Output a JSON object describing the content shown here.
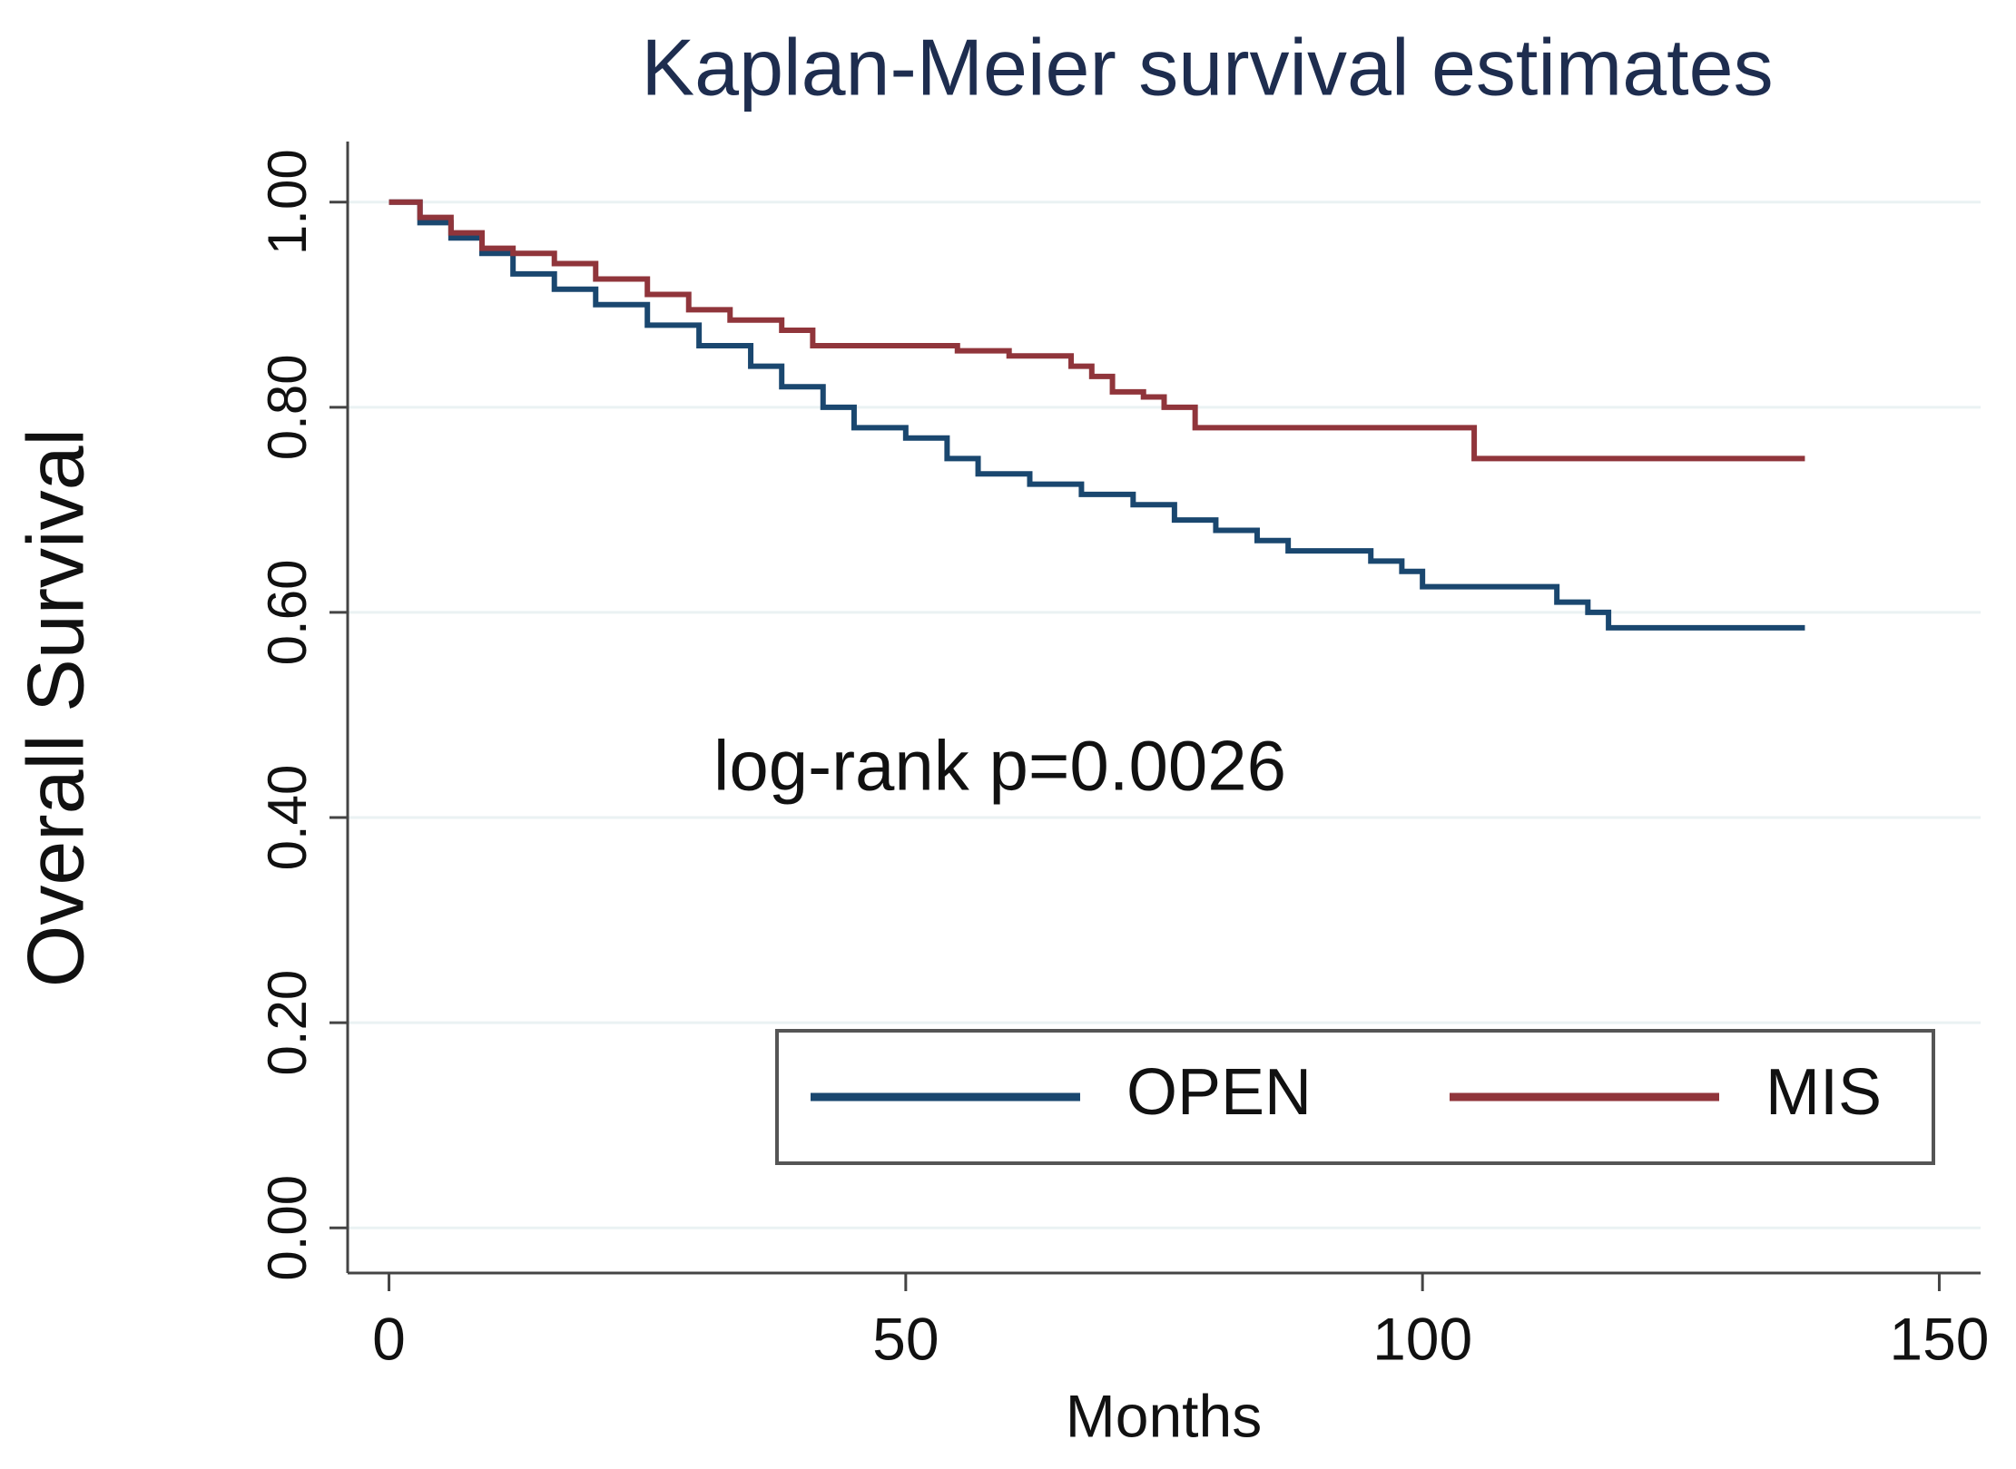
{
  "chart_data": {
    "type": "step",
    "title": "Kaplan-Meier survival estimates",
    "x_label": "Months",
    "y_label": "Overall Survival",
    "annotation": "log-rank p=0.0026",
    "xlim": [
      -4,
      154
    ],
    "ylim": [
      -0.044,
      1.059
    ],
    "xticks": [
      0,
      50,
      100,
      150
    ],
    "yticks": [
      {
        "value": 0,
        "label": "0.00"
      },
      {
        "value": 0.2,
        "label": "0.20"
      },
      {
        "value": 0.4,
        "label": "0.40"
      },
      {
        "value": 0.6,
        "label": "0.60"
      },
      {
        "value": 0.8,
        "label": "0.80"
      },
      {
        "value": 1,
        "label": "1.00"
      }
    ],
    "grid": true,
    "legend": "bottom-right",
    "series": [
      {
        "name": "OPEN",
        "color": "#1a476f",
        "x": [
          0,
          3,
          6,
          9,
          12,
          16,
          20,
          25,
          30,
          35,
          38,
          42,
          45,
          50,
          54,
          57,
          62,
          67,
          72,
          76,
          80,
          84,
          87,
          92,
          95,
          98,
          100,
          105,
          110,
          113,
          116,
          118,
          137
        ],
        "values": [
          1.0,
          0.98,
          0.965,
          0.95,
          0.93,
          0.915,
          0.9,
          0.88,
          0.86,
          0.84,
          0.82,
          0.8,
          0.78,
          0.77,
          0.75,
          0.735,
          0.725,
          0.715,
          0.705,
          0.69,
          0.68,
          0.67,
          0.66,
          0.66,
          0.65,
          0.64,
          0.625,
          0.625,
          0.625,
          0.61,
          0.6,
          0.585,
          0.585
        ]
      },
      {
        "name": "MIS",
        "color": "#90353b",
        "x": [
          0,
          3,
          6,
          9,
          12,
          16,
          20,
          25,
          29,
          33,
          38,
          41,
          50,
          55,
          60,
          66,
          68,
          70,
          73,
          75,
          78,
          95,
          105,
          137
        ],
        "values": [
          1.0,
          0.985,
          0.97,
          0.955,
          0.95,
          0.94,
          0.925,
          0.91,
          0.895,
          0.885,
          0.875,
          0.86,
          0.86,
          0.855,
          0.85,
          0.84,
          0.83,
          0.815,
          0.81,
          0.8,
          0.78,
          0.78,
          0.75,
          0.75
        ]
      }
    ]
  }
}
